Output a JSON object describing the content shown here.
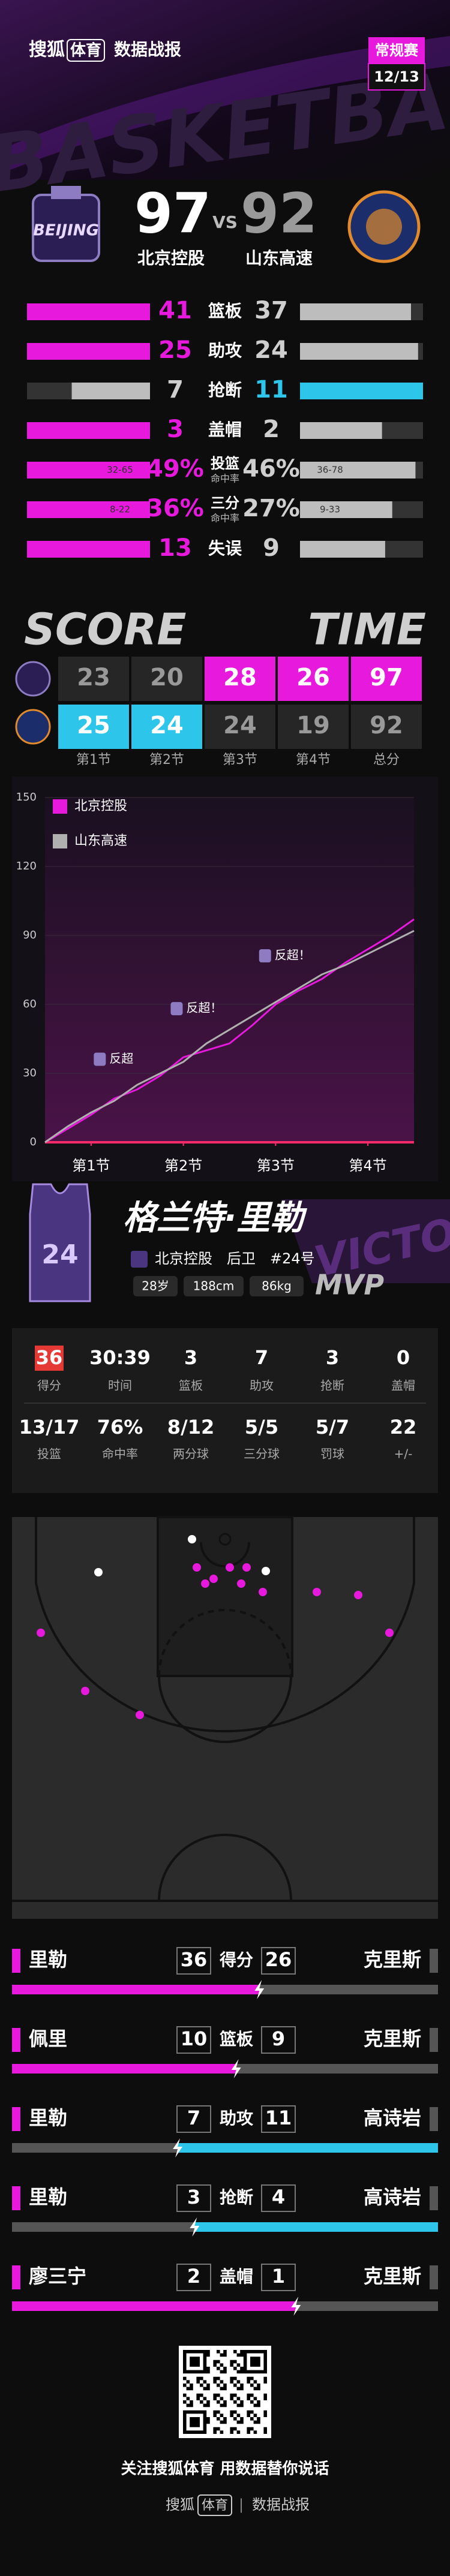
{
  "header": {
    "brand": "搜狐",
    "brand_tag": "体育",
    "title": "数据战报",
    "badge": "常规赛",
    "date": "12/13",
    "backdrop": "BASKETBALL"
  },
  "teams": {
    "home": {
      "name": "北京控股",
      "score": 97,
      "logo_text": "BEIJING"
    },
    "vs": "VS",
    "away": {
      "name": "山东高速",
      "score": 92
    }
  },
  "team_stats": [
    {
      "label": "篮板",
      "home": 41,
      "away": 37
    },
    {
      "label": "助攻",
      "home": 25,
      "away": 24
    },
    {
      "label": "抢断",
      "home": 7,
      "away": 11
    },
    {
      "label": "盖帽",
      "home": 3,
      "away": 2
    },
    {
      "label": "投篮",
      "sublabel": "命中率",
      "home": 49,
      "away": 46,
      "home_label": "49%",
      "away_label": "46%",
      "home_detail": "32-65",
      "away_detail": "36-78"
    },
    {
      "label": "三分",
      "sublabel": "命中率",
      "home": 36,
      "away": 27,
      "home_label": "36%",
      "away_label": "27%",
      "home_detail": "8-22",
      "away_detail": "9-33"
    },
    {
      "label": "失误",
      "home": 13,
      "away": 9
    }
  ],
  "quarters": {
    "left_title": "SCORE",
    "right_title": "TIME",
    "labels": [
      "第1节",
      "第2节",
      "第3节",
      "第4节",
      "总分"
    ],
    "home": [
      23,
      20,
      28,
      26,
      97
    ],
    "away": [
      25,
      24,
      24,
      19,
      92
    ]
  },
  "chart_data": {
    "type": "line",
    "x": [
      0,
      3,
      6,
      9,
      12,
      15,
      18,
      21,
      24,
      27,
      30,
      33,
      36,
      39,
      42,
      45,
      48
    ],
    "series": [
      {
        "name": "北京控股",
        "color": "#e619dc",
        "values": [
          0,
          6,
          12,
          19,
          23,
          29,
          37,
          40,
          43,
          51,
          60,
          66,
          71,
          78,
          84,
          90,
          97
        ]
      },
      {
        "name": "山东高速",
        "color": "#b0b0b0",
        "values": [
          0,
          7,
          13,
          18,
          25,
          30,
          35,
          43,
          49,
          55,
          61,
          67,
          73,
          77,
          82,
          87,
          92
        ]
      }
    ],
    "xlim": [
      0,
      48
    ],
    "xticks": [
      {
        "value": 6,
        "label": "第1节"
      },
      {
        "value": 18,
        "label": "第2节"
      },
      {
        "value": 30,
        "label": "第3节"
      },
      {
        "value": 42,
        "label": "第4节"
      }
    ],
    "ylim": [
      0,
      150
    ],
    "yticks": [
      0,
      30,
      60,
      90,
      120,
      150
    ],
    "grid": true,
    "annotations": [
      {
        "text": "反超",
        "x": 9,
        "y": 27
      },
      {
        "text": "反超！",
        "x": 19,
        "y": 49
      },
      {
        "text": "反超！",
        "x": 30.5,
        "y": 72
      }
    ]
  },
  "player": {
    "name": "格兰特·里勒",
    "jersey": "24",
    "team": "北京控股",
    "position": "后卫",
    "number": "#24号",
    "age": "28岁",
    "height": "188cm",
    "weight": "86kg",
    "award": "MVP",
    "backdrop": "VICTORY"
  },
  "player_stats": [
    {
      "value": 36,
      "label": "得分"
    },
    {
      "value": "30:39",
      "label": "时间"
    },
    {
      "value": 3,
      "label": "篮板"
    },
    {
      "value": 7,
      "label": "助攻"
    },
    {
      "value": 3,
      "label": "抢断"
    },
    {
      "value": 0,
      "label": "盖帽"
    },
    {
      "value": "13/17",
      "label": "投篮"
    },
    {
      "value": "76%",
      "label": "命中率"
    },
    {
      "value": "8/12",
      "label": "两分球"
    },
    {
      "value": "5/5",
      "label": "三分球"
    },
    {
      "value": "5/7",
      "label": "罚球"
    },
    {
      "value": 22,
      "label": "+/-"
    }
  ],
  "leaders": [
    {
      "stat": "得分",
      "home_player": "里勒",
      "home": 36,
      "away": 26,
      "away_player": "克里斯"
    },
    {
      "stat": "篮板",
      "home_player": "佩里",
      "home": 10,
      "away": 9,
      "away_player": "克里斯"
    },
    {
      "stat": "助攻",
      "home_player": "里勒",
      "home": 7,
      "away": 11,
      "away_player": "高诗岩"
    },
    {
      "stat": "抢断",
      "home_player": "里勒",
      "home": 3,
      "away": 4,
      "away_player": "高诗岩"
    },
    {
      "stat": "盖帽",
      "home_player": "廖三宁",
      "home": 2,
      "away": 1,
      "away_player": "克里斯"
    }
  ],
  "footer": {
    "slogan": "关注搜狐体育 用数据替你说话",
    "brand": "搜狐",
    "brand_tag": "体育",
    "separator": "|",
    "title": "数据战报"
  }
}
